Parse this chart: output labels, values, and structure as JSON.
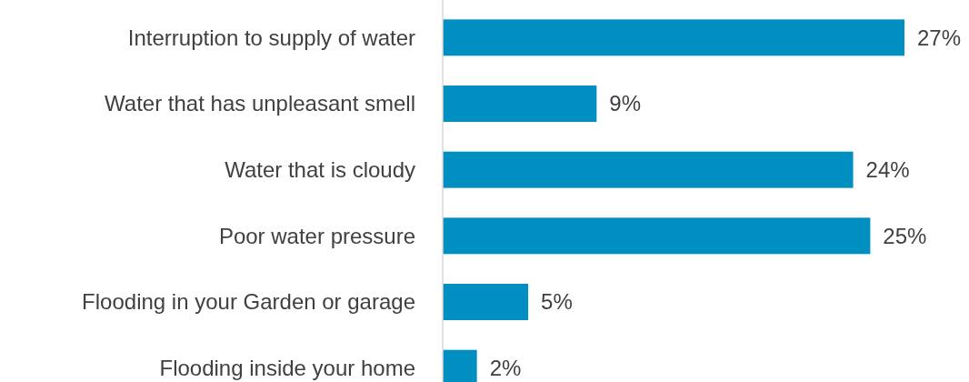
{
  "chart_data": {
    "type": "bar",
    "orientation": "horizontal",
    "categories": [
      "Interruption to supply of water",
      "Water that has unpleasant smell",
      "Water that is cloudy",
      "Poor water pressure",
      "Flooding in your Garden or garage",
      "Flooding inside your home"
    ],
    "values": [
      27,
      9,
      24,
      25,
      5,
      2
    ],
    "value_labels": [
      "27%",
      "9%",
      "24%",
      "25%",
      "5%",
      "2%"
    ],
    "color": "#008fc0"
  }
}
